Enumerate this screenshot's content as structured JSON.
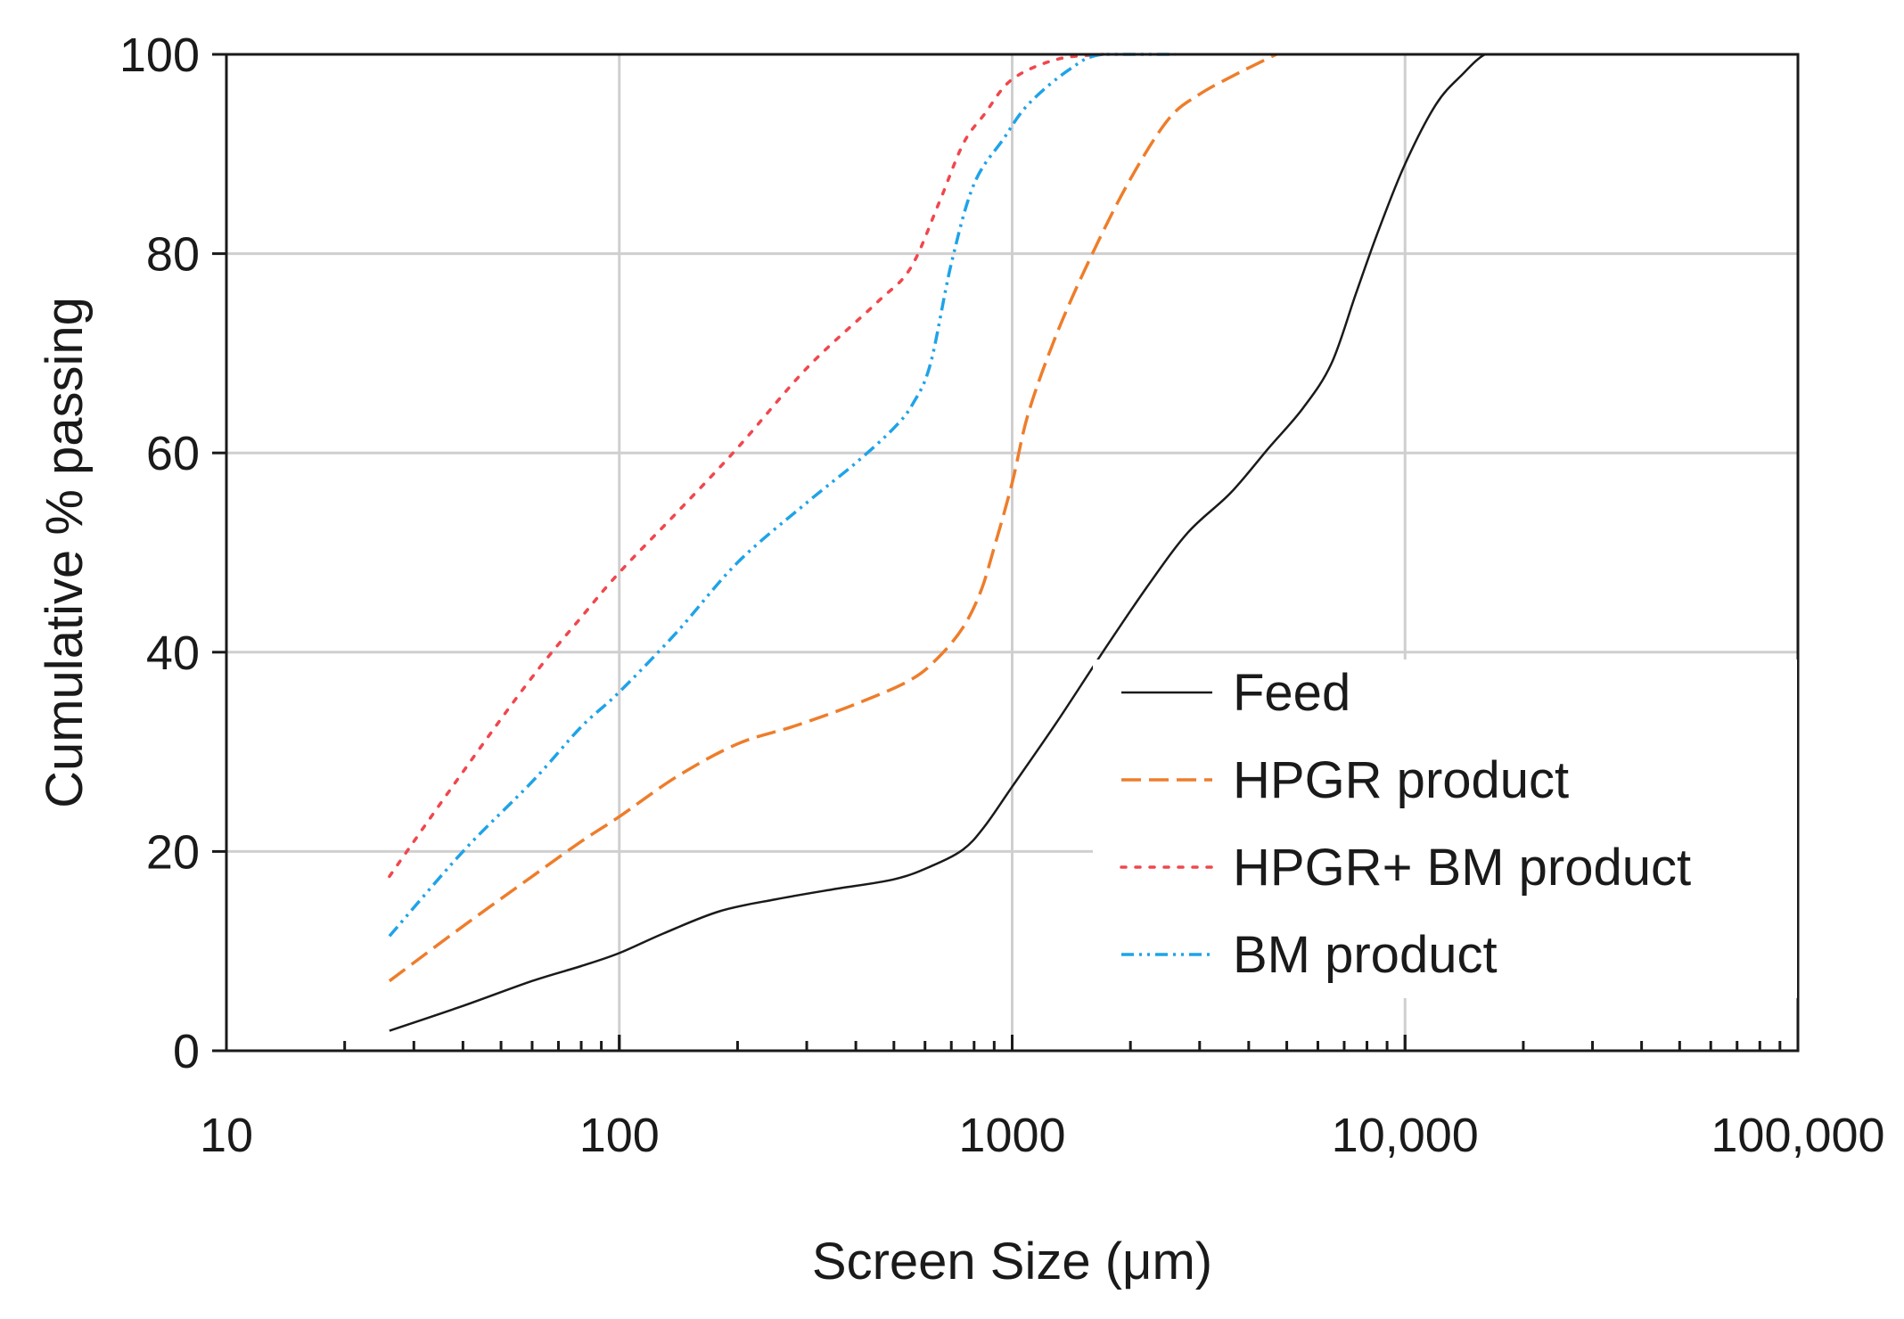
{
  "chart_data": {
    "type": "line",
    "title": "",
    "xlabel": "Screen Size (μm)",
    "ylabel": "Cumulative % passing",
    "x_scale": "log",
    "xlim": [
      10,
      100000
    ],
    "ylim": [
      0,
      100
    ],
    "x_ticks": [
      10,
      100,
      1000,
      10000,
      100000
    ],
    "x_tick_labels": [
      "10",
      "100",
      "1000",
      "10,000",
      "100,000"
    ],
    "y_ticks": [
      0,
      20,
      40,
      60,
      80,
      100
    ],
    "y_tick_labels": [
      "0",
      "20",
      "40",
      "60",
      "80",
      "100"
    ],
    "grid": true,
    "legend_position": "bottom-right",
    "series": [
      {
        "name": "Feed",
        "color": "#1a1a1a",
        "style": "solid",
        "x": [
          26,
          40,
          60,
          80,
          100,
          130,
          180,
          250,
          350,
          500,
          620,
          750,
          850,
          1000,
          1300,
          1700,
          2200,
          2800,
          3600,
          4500,
          5500,
          6500,
          7500,
          8500,
          10000,
          12000,
          14000,
          16000,
          18000,
          30000,
          100000
        ],
        "y": [
          2,
          4.5,
          7,
          8.5,
          9.8,
          11.8,
          14,
          15.2,
          16.2,
          17.2,
          18.5,
          20.2,
          22.5,
          26.5,
          33,
          40,
          46.5,
          52,
          56,
          60.5,
          64.5,
          69,
          76,
          82,
          89,
          95,
          98,
          100,
          100,
          100,
          100
        ]
      },
      {
        "name": "HPGR product",
        "color": "#ee7d2b",
        "style": "dashed",
        "x": [
          26,
          40,
          60,
          80,
          100,
          140,
          200,
          280,
          400,
          550,
          650,
          750,
          830,
          900,
          1000,
          1100,
          1300,
          1600,
          2000,
          2500,
          3000,
          3800,
          4700
        ],
        "y": [
          7,
          12.5,
          17.5,
          21,
          23.5,
          27.5,
          30.8,
          32.6,
          34.8,
          37.2,
          39.5,
          42.5,
          46,
          50.5,
          57,
          64,
          72,
          80,
          87.5,
          93.5,
          96,
          98.2,
          100
        ]
      },
      {
        "name": "HPGR+ BM product",
        "color": "#f0474d",
        "style": "dotted",
        "x": [
          26,
          40,
          60,
          80,
          100,
          140,
          200,
          300,
          450,
          550,
          650,
          750,
          850,
          1000,
          1300,
          1700
        ],
        "y": [
          17.5,
          28,
          37.5,
          43.5,
          48,
          54,
          60.5,
          68.5,
          75,
          78.5,
          85,
          91,
          94,
          97.5,
          99.5,
          100
        ]
      },
      {
        "name": "BM product",
        "color": "#1fa3e8",
        "style": "dashdot",
        "x": [
          26,
          40,
          60,
          80,
          100,
          140,
          200,
          300,
          400,
          500,
          560,
          620,
          700,
          800,
          950,
          1100,
          1400,
          1700,
          2600
        ],
        "y": [
          11.5,
          20,
          27,
          32.5,
          36,
          42,
          49,
          55,
          59,
          62.5,
          65,
          69,
          79,
          87,
          91.5,
          95,
          98.5,
          100,
          100
        ]
      }
    ]
  }
}
